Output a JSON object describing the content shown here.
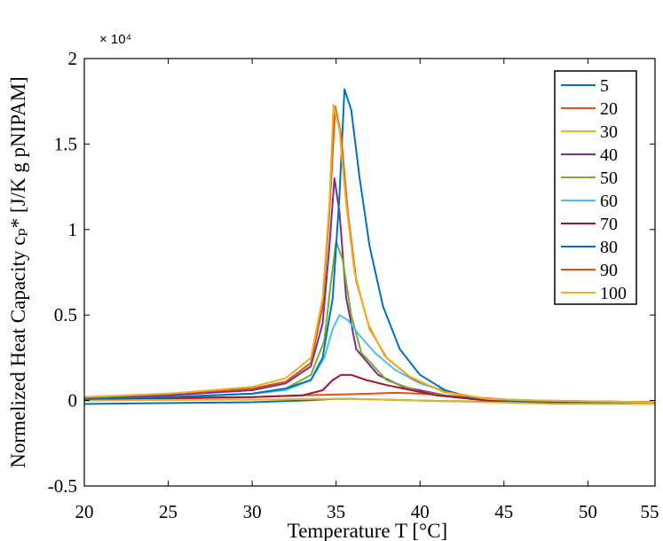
{
  "chart_data": {
    "type": "line",
    "title": "",
    "xlabel": "Temperature T [°C]",
    "ylabel": "Normelized Heat Capacity cₚ* [J/K g pNIPAM]",
    "y_multiplier": "× 10⁴",
    "xlim": [
      20,
      54
    ],
    "ylim": [
      -5000,
      20000
    ],
    "x_ticks": [
      20,
      25,
      30,
      35,
      40,
      45,
      50,
      55
    ],
    "y_ticks": [
      -5000,
      0,
      5000,
      10000,
      15000,
      20000
    ],
    "x_tick_labels": [
      "20",
      "25",
      "30",
      "35",
      "40",
      "45",
      "50",
      "55"
    ],
    "y_tick_labels": [
      "-0.5",
      "0",
      "0.5",
      "1",
      "1.5",
      "2"
    ],
    "legend_position": "top-right",
    "grid": false,
    "series": [
      {
        "name": "5",
        "color": "#0072BD",
        "x": [
          20,
          30,
          33,
          34,
          35,
          36,
          38,
          40,
          45,
          54
        ],
        "y": [
          -200,
          -100,
          0,
          50,
          100,
          100,
          50,
          0,
          -100,
          -200
        ]
      },
      {
        "name": "20",
        "color": "#D95319",
        "x": [
          20,
          30,
          33,
          35,
          37,
          38.5,
          40,
          43,
          46,
          54
        ],
        "y": [
          0,
          200,
          300,
          350,
          400,
          450,
          400,
          200,
          0,
          -100
        ]
      },
      {
        "name": "30",
        "color": "#EDB120",
        "x": [
          20,
          30,
          34,
          36,
          38,
          40,
          44,
          48,
          54
        ],
        "y": [
          0,
          50,
          100,
          100,
          50,
          0,
          -100,
          -200,
          -200
        ]
      },
      {
        "name": "40",
        "color": "#7E2F8E",
        "x": [
          20,
          25,
          30,
          32,
          33.5,
          34.2,
          34.6,
          34.9,
          35.2,
          35.6,
          36.2,
          37.5,
          39,
          42,
          46,
          54
        ],
        "y": [
          100,
          300,
          600,
          1000,
          2000,
          4500,
          9000,
          13000,
          11000,
          6000,
          3000,
          1500,
          800,
          200,
          0,
          -100
        ]
      },
      {
        "name": "50",
        "color": "#77AC30",
        "x": [
          20,
          25,
          30,
          32,
          33.5,
          34.3,
          34.7,
          35,
          35.4,
          35.9,
          36.5,
          38,
          40,
          43,
          46,
          54
        ],
        "y": [
          100,
          200,
          400,
          700,
          1500,
          3500,
          7000,
          9300,
          8200,
          5000,
          2800,
          1200,
          500,
          100,
          0,
          -100
        ]
      },
      {
        "name": "60",
        "color": "#4DBEEE",
        "x": [
          20,
          25,
          30,
          32,
          33.5,
          34.3,
          34.8,
          35.2,
          35.7,
          36.4,
          37.3,
          38.5,
          40,
          42,
          44,
          46,
          54
        ],
        "y": [
          100,
          200,
          400,
          600,
          1200,
          2500,
          4200,
          5000,
          4700,
          3800,
          2800,
          1800,
          1000,
          400,
          100,
          0,
          -100
        ]
      },
      {
        "name": "70",
        "color": "#A2142F",
        "x": [
          20,
          25,
          30,
          33,
          34.2,
          34.8,
          35.3,
          35.9,
          36.8,
          38,
          39.5,
          41,
          44,
          54
        ],
        "y": [
          100,
          150,
          200,
          300,
          600,
          1200,
          1500,
          1500,
          1200,
          900,
          600,
          300,
          0,
          -100
        ]
      },
      {
        "name": "80",
        "color": "#0072BD",
        "x": [
          20,
          25,
          30,
          32,
          33.5,
          34.2,
          34.8,
          35.2,
          35.5,
          35.9,
          36.4,
          37,
          37.8,
          38.8,
          40,
          41.5,
          43,
          45,
          48,
          54
        ],
        "y": [
          100,
          200,
          400,
          700,
          1200,
          2500,
          6000,
          12000,
          18200,
          17000,
          13000,
          9000,
          5500,
          3000,
          1500,
          600,
          200,
          0,
          -100,
          -100
        ]
      },
      {
        "name": "90",
        "color": "#D95319",
        "x": [
          20,
          25,
          30,
          32,
          33.5,
          34.2,
          34.6,
          34.95,
          35.3,
          35.7,
          36.2,
          37,
          38,
          39.5,
          41.5,
          44,
          47,
          54
        ],
        "y": [
          200,
          400,
          700,
          1100,
          2200,
          5500,
          11000,
          17200,
          15500,
          11000,
          7000,
          4200,
          2500,
          1300,
          500,
          100,
          0,
          -100
        ]
      },
      {
        "name": "100",
        "color": "#EDB120",
        "x": [
          20,
          25,
          30,
          32,
          33.5,
          34.2,
          34.6,
          34.85,
          35.2,
          35.6,
          36.1,
          36.9,
          37.9,
          39.4,
          41.4,
          44,
          47,
          54
        ],
        "y": [
          200,
          400,
          800,
          1300,
          2500,
          6000,
          11500,
          17300,
          15800,
          11500,
          7500,
          4500,
          2600,
          1400,
          500,
          100,
          0,
          -100
        ]
      }
    ]
  }
}
